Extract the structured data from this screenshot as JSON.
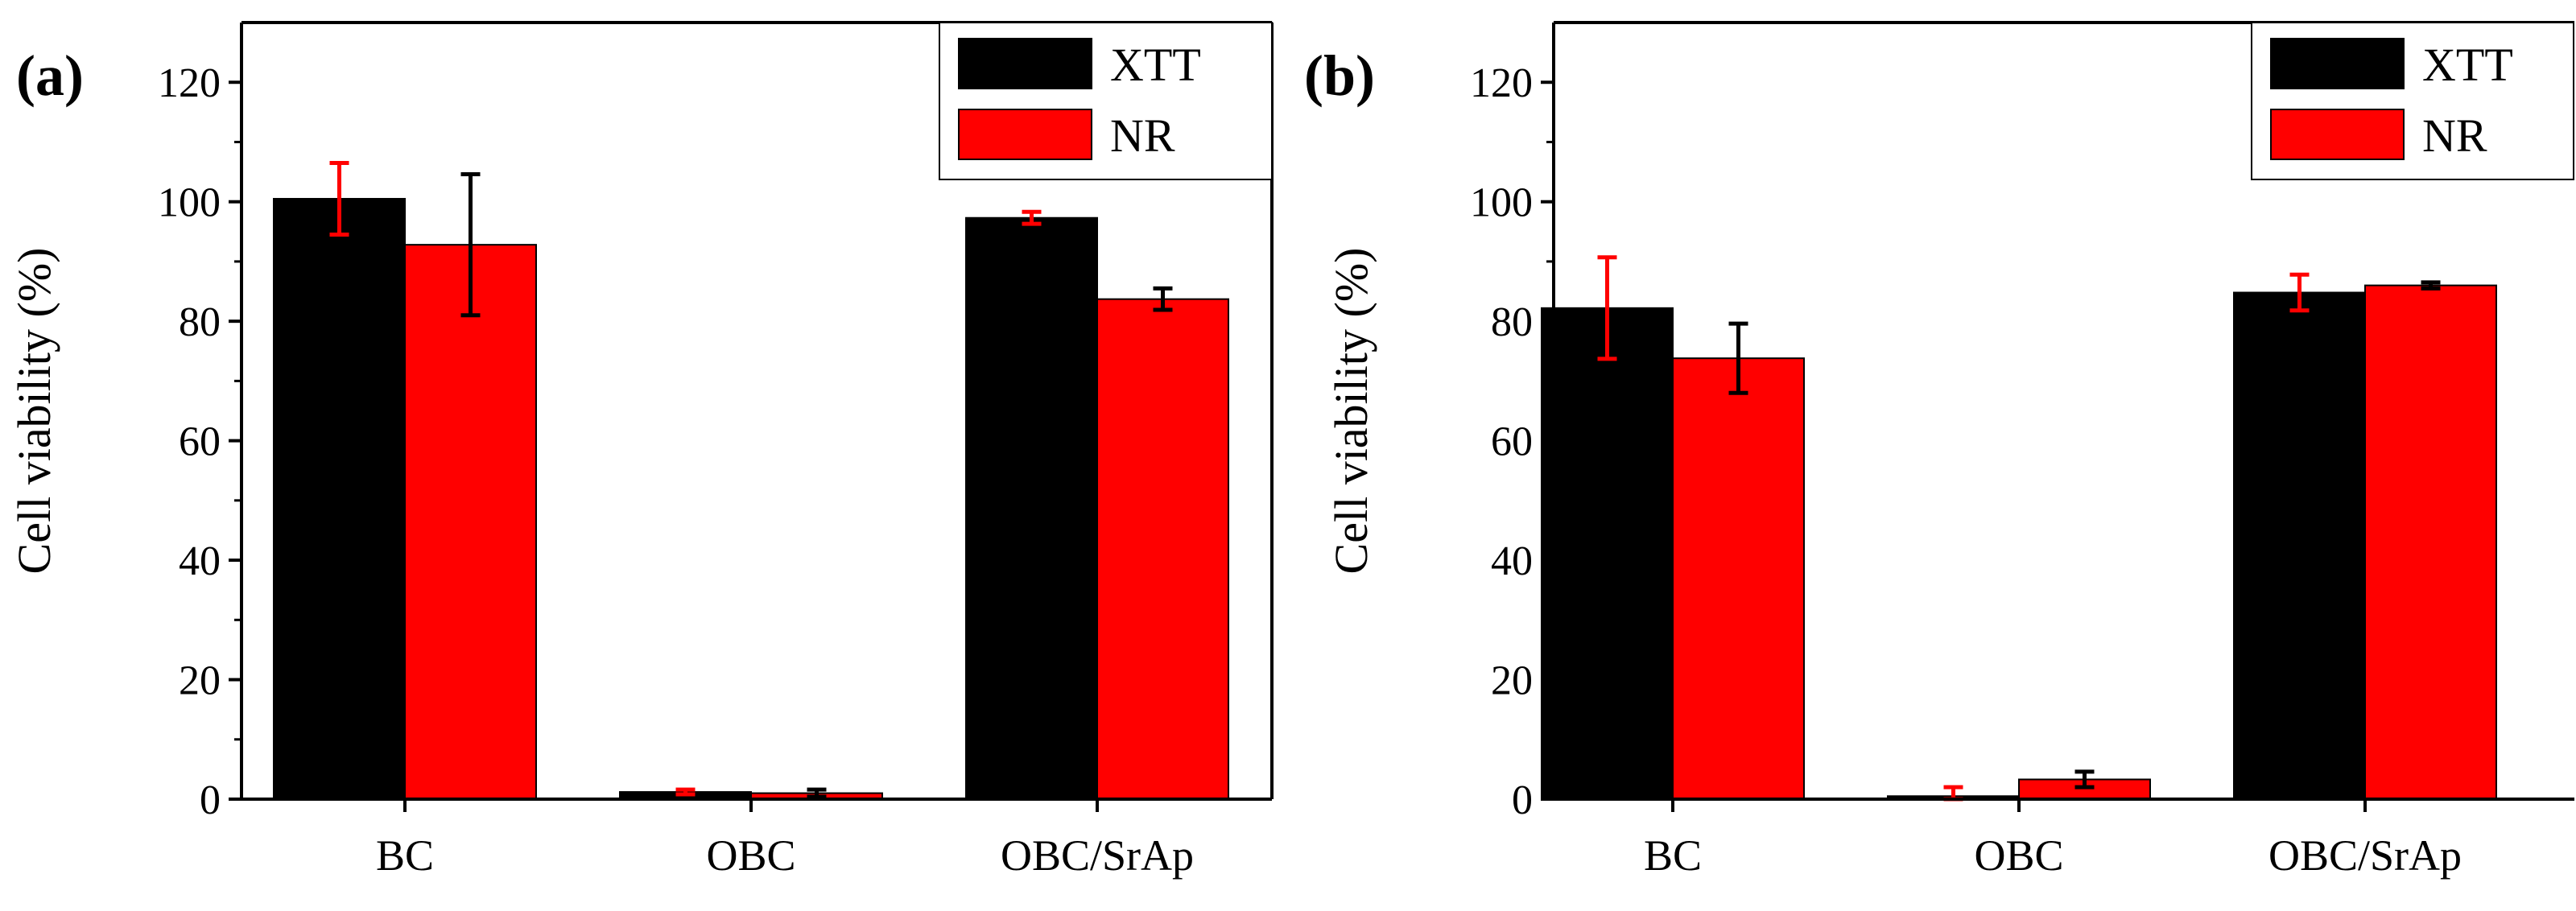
{
  "chart_data": [
    {
      "type": "bar",
      "panel_label": "(a)",
      "categories": [
        "BC",
        "OBC",
        "OBC/SrAp"
      ],
      "ylabel": "Cell viability (%)",
      "xlabel": "",
      "ylim": [
        0,
        130
      ],
      "yticks": [
        0,
        20,
        40,
        60,
        80,
        100,
        120
      ],
      "legend_position": "top-right",
      "series": [
        {
          "name": "XTT",
          "color": "#000000",
          "values": [
            100.5,
            1.2,
            97.3
          ],
          "errors": [
            6.0,
            0.4,
            1.0
          ],
          "error_color": "#ff0000"
        },
        {
          "name": "NR",
          "color": "#ff0000",
          "values": [
            92.8,
            1.0,
            83.7
          ],
          "errors": [
            11.8,
            0.6,
            1.8
          ],
          "error_color": "#000000"
        }
      ]
    },
    {
      "type": "bar",
      "panel_label": "(b)",
      "categories": [
        "BC",
        "OBC",
        "OBC/SrAp"
      ],
      "ylabel": "Cell viability (%)",
      "xlabel": "",
      "ylim": [
        0,
        130
      ],
      "yticks": [
        0,
        20,
        40,
        60,
        80,
        100,
        120
      ],
      "legend_position": "top-right",
      "series": [
        {
          "name": "XTT",
          "color": "#000000",
          "values": [
            82.2,
            0.5,
            84.8
          ],
          "errors": [
            8.5,
            1.5,
            3.0
          ],
          "error_color": "#ff0000"
        },
        {
          "name": "NR",
          "color": "#ff0000",
          "values": [
            73.8,
            3.3,
            86.0
          ],
          "errors": [
            5.8,
            1.3,
            0.5
          ],
          "error_color": "#000000"
        }
      ]
    }
  ]
}
